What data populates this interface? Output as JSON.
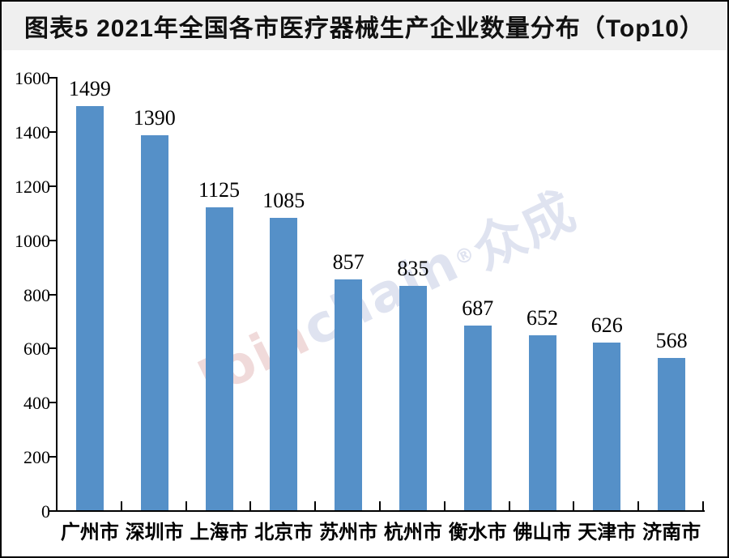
{
  "header": {
    "title": "图表5  2021年全国各市医疗器械生产企业数量分布（Top10）"
  },
  "watermark": {
    "warm_part": "Join",
    "cool_part": "chain",
    "reg_mark": "®",
    "cjk_part": "众成",
    "full_text": "Joinchain®众成"
  },
  "colors": {
    "bar": "#5590c8",
    "title_band_bg": "#efefef",
    "title_text": "#111111",
    "axis": "#000000",
    "frame_border": "#000000",
    "watermark_warm": "#f0dada",
    "watermark_cool": "#dfe3f0",
    "plot_bg": "#ffffff"
  },
  "chart_data": {
    "type": "bar",
    "title": "图表5  2021年全国各市医疗器械生产企业数量分布（Top10）",
    "categories": [
      "广州市",
      "深圳市",
      "上海市",
      "北京市",
      "苏州市",
      "杭州市",
      "衡水市",
      "佛山市",
      "天津市",
      "济南市"
    ],
    "values": [
      1499,
      1390,
      1125,
      1085,
      857,
      835,
      687,
      652,
      626,
      568
    ],
    "xlabel": "",
    "ylabel": "",
    "ylim": [
      0,
      1600
    ],
    "ytick_step": 200,
    "ytick_labels": [
      "0",
      "200",
      "400",
      "600",
      "800",
      "1000",
      "1200",
      "1400",
      "1600"
    ],
    "grid": false,
    "legend_position": "none",
    "data_labels": true,
    "bar_color": "#5590c8",
    "watermark_text": "Joinchain®众成"
  }
}
